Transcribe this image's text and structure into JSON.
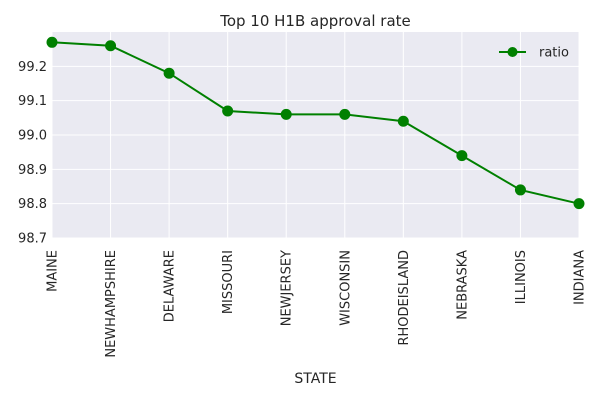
{
  "chart_data": {
    "type": "line",
    "title": "Top 10 H1B approval rate",
    "xlabel": "STATE",
    "ylabel": "",
    "categories": [
      "MAINE",
      "NEWHAMPSHIRE",
      "DELAWARE",
      "MISSOURI",
      "NEWJERSEY",
      "WISCONSIN",
      "RHODEISLAND",
      "NEBRASKA",
      "ILLINOIS",
      "INDIANA"
    ],
    "series": [
      {
        "name": "ratio",
        "values": [
          99.27,
          99.26,
          99.18,
          99.07,
          99.06,
          99.06,
          99.04,
          98.94,
          98.84,
          98.8
        ],
        "color": "#008000"
      }
    ],
    "ylim": [
      98.7,
      99.3
    ],
    "yticks": [
      "98.7",
      "98.8",
      "98.9",
      "99.0",
      "99.1",
      "99.2"
    ],
    "grid": true,
    "background": "#eaeaf2",
    "legend_position": "top-right"
  }
}
